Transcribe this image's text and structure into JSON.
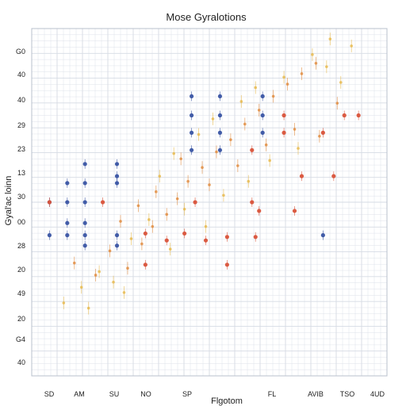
{
  "chart_data": {
    "type": "scatter",
    "title": "Mose Gyralotions",
    "xlabel": "Flgotom",
    "ylabel": "Gyal'ac loinn",
    "x_tick_labels": [
      "SD",
      "AM",
      "SU",
      "NO",
      "SP",
      "FL",
      "AVIB",
      "TSO",
      "4UD"
    ],
    "y_tick_labels": [
      "G0",
      "40",
      "40",
      "29",
      "23",
      "13",
      "30",
      "00",
      "28",
      "20",
      "49",
      "20",
      "G4",
      "40"
    ],
    "grid": true,
    "legend": "none",
    "colors": {
      "blue": "#3a55a4",
      "red": "#d9533a",
      "orange": "#e08a3c",
      "yellow": "#e6b84a",
      "grid": "#d6dbe4"
    },
    "series": [
      {
        "color": "blue",
        "points": [
          [
            0.5,
            8.1
          ],
          [
            1.0,
            8.1
          ],
          [
            1.5,
            8.1
          ],
          [
            2.4,
            8.1
          ],
          [
            1.0,
            8.8
          ],
          [
            1.5,
            8.8
          ],
          [
            1.5,
            7.5
          ],
          [
            2.4,
            7.5
          ],
          [
            0.5,
            10.0
          ],
          [
            1.0,
            10.0
          ],
          [
            1.5,
            10.0
          ],
          [
            1.0,
            11.1
          ],
          [
            1.5,
            11.1
          ],
          [
            2.4,
            11.1
          ],
          [
            1.5,
            12.2
          ],
          [
            2.4,
            12.2
          ],
          [
            2.4,
            11.5
          ],
          [
            4.5,
            16.1
          ],
          [
            5.3,
            16.1
          ],
          [
            6.5,
            16.1
          ],
          [
            4.5,
            15.0
          ],
          [
            5.3,
            15.0
          ],
          [
            6.5,
            15.0
          ],
          [
            4.5,
            14.0
          ],
          [
            5.3,
            14.0
          ],
          [
            6.5,
            14.0
          ],
          [
            4.5,
            13.0
          ],
          [
            5.3,
            13.0
          ],
          [
            8.2,
            8.1
          ]
        ]
      },
      {
        "color": "red",
        "points": [
          [
            0.5,
            10.0
          ],
          [
            2.0,
            10.0
          ],
          [
            3.2,
            8.2
          ],
          [
            4.3,
            8.2
          ],
          [
            5.5,
            8.0
          ],
          [
            6.3,
            8.0
          ],
          [
            3.2,
            6.4
          ],
          [
            5.5,
            6.4
          ],
          [
            4.6,
            10.0
          ],
          [
            6.2,
            10.0
          ],
          [
            6.2,
            13.0
          ],
          [
            7.1,
            14.0
          ],
          [
            8.2,
            14.0
          ],
          [
            7.1,
            15.0
          ],
          [
            8.8,
            15.0
          ],
          [
            9.2,
            15.0
          ],
          [
            7.6,
            11.5
          ],
          [
            8.5,
            11.5
          ],
          [
            6.4,
            9.5
          ],
          [
            7.4,
            9.5
          ],
          [
            3.8,
            7.8
          ],
          [
            4.9,
            7.8
          ]
        ]
      },
      {
        "color": "orange",
        "points": [
          [
            1.2,
            6.5
          ],
          [
            1.8,
            5.8
          ],
          [
            2.2,
            7.2
          ],
          [
            2.7,
            6.2
          ],
          [
            3.1,
            7.6
          ],
          [
            3.4,
            8.6
          ],
          [
            3.8,
            9.3
          ],
          [
            4.1,
            10.2
          ],
          [
            4.4,
            11.2
          ],
          [
            4.8,
            12.0
          ],
          [
            5.2,
            12.9
          ],
          [
            5.6,
            13.6
          ],
          [
            6.0,
            14.5
          ],
          [
            6.4,
            15.3
          ],
          [
            6.8,
            16.1
          ],
          [
            7.2,
            16.8
          ],
          [
            7.6,
            17.4
          ],
          [
            8.0,
            18.0
          ],
          [
            2.5,
            8.9
          ],
          [
            3.0,
            9.8
          ],
          [
            3.5,
            10.6
          ],
          [
            4.2,
            12.5
          ],
          [
            5.0,
            11.0
          ],
          [
            5.8,
            12.1
          ],
          [
            6.6,
            13.3
          ],
          [
            7.4,
            14.2
          ],
          [
            8.1,
            13.8
          ],
          [
            8.6,
            15.7
          ]
        ]
      },
      {
        "color": "yellow",
        "points": [
          [
            0.9,
            4.2
          ],
          [
            1.4,
            5.1
          ],
          [
            1.9,
            6.0
          ],
          [
            2.3,
            5.4
          ],
          [
            2.8,
            7.9
          ],
          [
            3.3,
            9.0
          ],
          [
            3.6,
            11.5
          ],
          [
            4.0,
            12.8
          ],
          [
            4.3,
            9.6
          ],
          [
            4.7,
            13.9
          ],
          [
            5.1,
            14.8
          ],
          [
            5.4,
            10.4
          ],
          [
            5.9,
            15.8
          ],
          [
            6.3,
            16.6
          ],
          [
            6.7,
            12.4
          ],
          [
            7.1,
            17.2
          ],
          [
            7.5,
            13.1
          ],
          [
            7.9,
            18.5
          ],
          [
            8.3,
            17.8
          ],
          [
            8.7,
            16.9
          ],
          [
            9.0,
            19.0
          ],
          [
            6.1,
            11.2
          ],
          [
            4.9,
            8.6
          ],
          [
            3.9,
            7.3
          ],
          [
            2.6,
            4.8
          ],
          [
            1.6,
            3.9
          ],
          [
            8.4,
            19.4
          ]
        ]
      }
    ]
  }
}
